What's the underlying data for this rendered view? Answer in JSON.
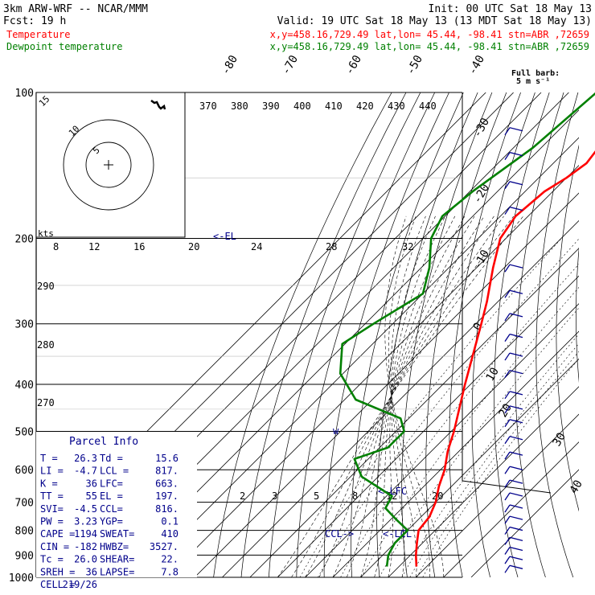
{
  "header": {
    "line1_left": "3km ARW-WRF -- NCAR/MMM",
    "line1_right": "Init: 00 UTC Sat 18 May 13",
    "line2_left": "Fcst:    19 h",
    "line2_right": "Valid: 19 UTC Sat 18 May 13 (13 MDT Sat 18 May 13)",
    "line3_label": "Temperature",
    "line3_info": "x,y=458.16,729.49   lat,lon= 45.44, -98.41   stn=ABR ,72659",
    "line4_label": "Dewpoint temperature",
    "line4_info": "x,y=458.16,729.49   lat,lon= 45.44, -98.41   stn=ABR ,72659",
    "temp_color": "#ff0000",
    "dew_color": "#008000"
  },
  "wind_legend": {
    "line1": "Full barb:",
    "line2": "5 m s⁻¹"
  },
  "hodograph": {
    "kts_label": "kts",
    "ring_labels": [
      "5",
      "10",
      "15"
    ]
  },
  "parcel_info": {
    "title": "Parcel Info",
    "rows": [
      [
        "T  =",
        "26.3",
        "Td =",
        "15.6"
      ],
      [
        "LI =",
        "-4.7",
        "LCL =",
        "817."
      ],
      [
        "K  =",
        "36",
        "LFC=",
        "663."
      ],
      [
        "TT =",
        "55",
        "EL =",
        "197."
      ],
      [
        "SVI=",
        "-4.5",
        "CCL=",
        "816."
      ],
      [
        "PW =",
        "3.23",
        "YGP=",
        "0.1"
      ],
      [
        "CAPE =",
        "1194",
        "SWEAT=",
        "410"
      ],
      [
        "CIN =",
        "-182",
        "HWBZ=",
        "3527."
      ],
      [
        "Tc =",
        "26.0",
        "SHEAR=",
        "22."
      ],
      [
        "SREH =",
        "36",
        "LAPSE=",
        "7.8"
      ],
      [
        "CELL =",
        "219/26",
        "",
        ""
      ]
    ]
  },
  "chart_data": {
    "type": "line",
    "title": "",
    "y_axis": "pressure (hPa), log scale",
    "pressure_ticks": [
      "100",
      "200",
      "300",
      "400",
      "500",
      "600",
      "700",
      "800",
      "900",
      "1000"
    ],
    "isotherm_labels": [
      "-80",
      "-70",
      "-60",
      "-50",
      "-40",
      "-30",
      "-20",
      "-10",
      "0",
      "10",
      "20",
      "30",
      "40"
    ],
    "theta_labels": [
      "370",
      "380",
      "390",
      "400",
      "410",
      "420",
      "430",
      "440"
    ],
    "theta_side_labels": [
      "290",
      "280",
      "270"
    ],
    "mixing_ratio_labels_top": [
      "8",
      "12",
      "16",
      "20",
      "24",
      "28",
      "32"
    ],
    "mixing_ratio_labels_bottom": [
      "2",
      "3",
      "5",
      "8",
      "12",
      "20"
    ],
    "annotations": [
      "<-EL",
      "<-LFC",
      "<-LCL",
      "CCL->",
      "w"
    ],
    "series": [
      {
        "name": "Temperature",
        "points": [
          {
            "p": 100,
            "t": -60.5
          },
          {
            "p": 115,
            "t": -61.5
          },
          {
            "p": 140,
            "t": -58
          },
          {
            "p": 150,
            "t": -60
          },
          {
            "p": 160,
            "t": -63
          },
          {
            "p": 180,
            "t": -64.5
          },
          {
            "p": 200,
            "t": -62
          },
          {
            "p": 230,
            "t": -54
          },
          {
            "p": 270,
            "t": -44
          },
          {
            "p": 300,
            "t": -38
          },
          {
            "p": 400,
            "t": -22
          },
          {
            "p": 500,
            "t": -9
          },
          {
            "p": 550,
            "t": -4
          },
          {
            "p": 600,
            "t": 1.5
          },
          {
            "p": 650,
            "t": 5.5
          },
          {
            "p": 700,
            "t": 10
          },
          {
            "p": 750,
            "t": 13
          },
          {
            "p": 800,
            "t": 14
          },
          {
            "p": 850,
            "t": 18
          },
          {
            "p": 900,
            "t": 22
          },
          {
            "p": 950,
            "t": 26.3
          }
        ]
      },
      {
        "name": "Dewpoint temperature",
        "points": [
          {
            "p": 100,
            "t": -80
          },
          {
            "p": 130,
            "t": -83
          },
          {
            "p": 160,
            "t": -89
          },
          {
            "p": 180,
            "t": -91
          },
          {
            "p": 200,
            "t": -87
          },
          {
            "p": 230,
            "t": -77
          },
          {
            "p": 260,
            "t": -70
          },
          {
            "p": 300,
            "t": -77
          },
          {
            "p": 330,
            "t": -81
          },
          {
            "p": 380,
            "t": -71
          },
          {
            "p": 430,
            "t": -56
          },
          {
            "p": 470,
            "t": -33
          },
          {
            "p": 500,
            "t": -27
          },
          {
            "p": 540,
            "t": -27
          },
          {
            "p": 570,
            "t": -35
          },
          {
            "p": 620,
            "t": -26
          },
          {
            "p": 680,
            "t": -8
          },
          {
            "p": 720,
            "t": -6
          },
          {
            "p": 760,
            "t": 2
          },
          {
            "p": 800,
            "t": 10
          },
          {
            "p": 850,
            "t": 10
          },
          {
            "p": 900,
            "t": 12
          },
          {
            "p": 950,
            "t": 15.6
          }
        ]
      }
    ],
    "hodograph_points": [
      [
        53,
        -80
      ],
      [
        57,
        -77
      ],
      [
        60,
        -78
      ],
      [
        63,
        -72
      ],
      [
        65,
        -70
      ],
      [
        69,
        -73
      ],
      [
        70,
        -69
      ]
    ],
    "wind_barbs_pressures": [
      120,
      135,
      155,
      175,
      230,
      260,
      290,
      320,
      350,
      380,
      420,
      450,
      480,
      520,
      560,
      600,
      640,
      680,
      720,
      760,
      800,
      840,
      880,
      920,
      960
    ]
  }
}
